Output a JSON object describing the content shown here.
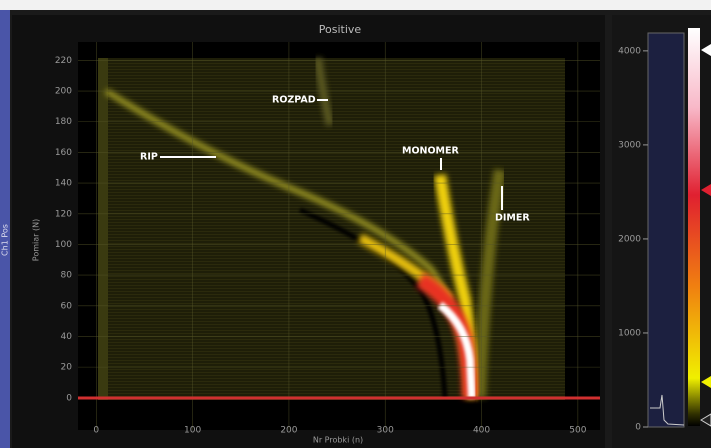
{
  "chart_data": {
    "type": "heatmap",
    "title": "Positive",
    "x_label": "Nr Probki (n)",
    "y_label": "Pomiar (N)",
    "side_label": "Ch1 Pos",
    "xlim": [
      -19,
      523
    ],
    "xticks": [
      0,
      100,
      200,
      300,
      400,
      500
    ],
    "ylim": [
      -21,
      232
    ],
    "yticks": [
      0,
      20,
      40,
      60,
      80,
      100,
      120,
      140,
      160,
      180,
      200,
      220
    ],
    "grid": true,
    "annotations": [
      "ROZPAD",
      "RIP",
      "MONOMER",
      "DIMER"
    ],
    "colorbar": {
      "lim": [
        0,
        4190
      ],
      "ticks": [
        0,
        1000,
        2000,
        3000,
        4000
      ]
    }
  }
}
